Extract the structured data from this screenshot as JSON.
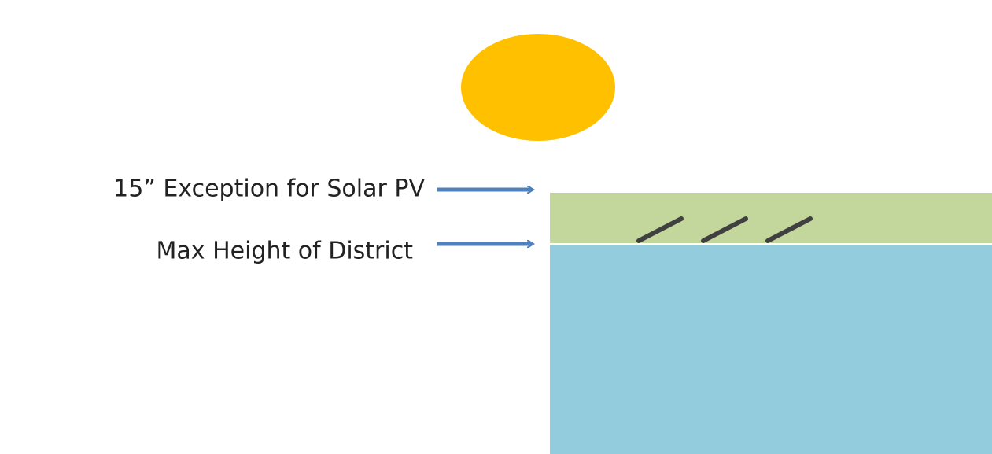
{
  "labels": {
    "solar_exception": "15” Exception for Solar PV",
    "max_height": "Max Height of District"
  }
}
